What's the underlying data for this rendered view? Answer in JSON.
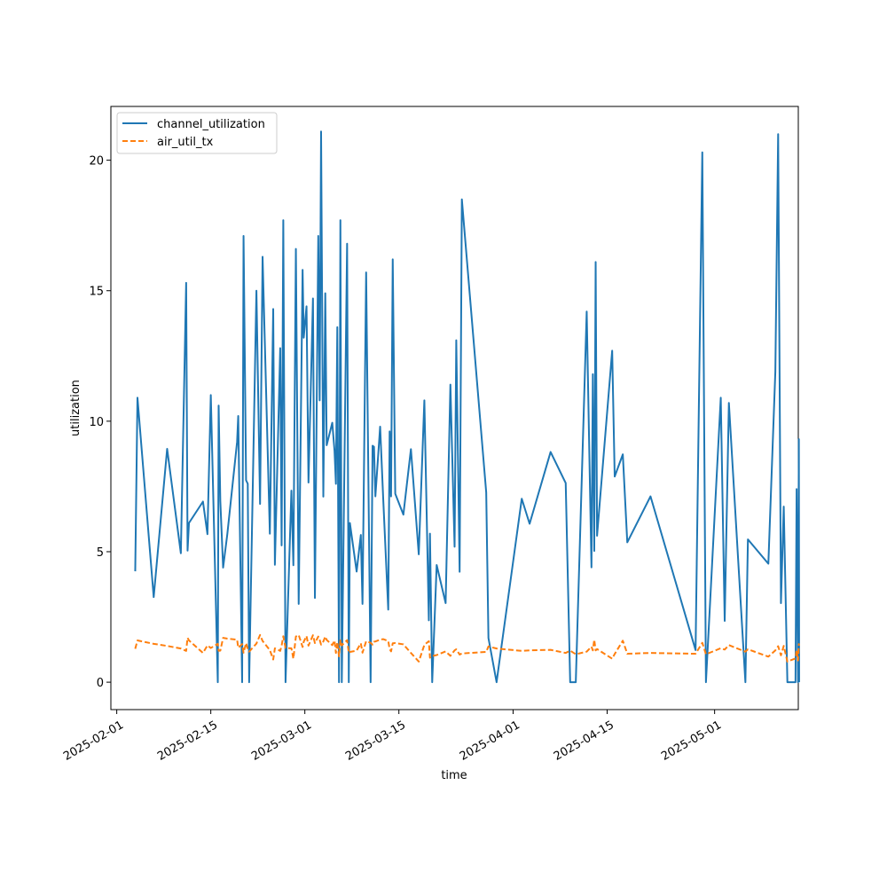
{
  "chart_data": {
    "type": "line",
    "xlabel": "time",
    "ylabel": "utilization",
    "xlim": [
      "2025-01-31T03:00",
      "2025-05-13T11:00"
    ],
    "ylim": [
      -1.05,
      22.06
    ],
    "yticks": [
      0,
      5,
      10,
      15,
      20
    ],
    "xticks": [
      "2025-02-01",
      "2025-02-15",
      "2025-03-01",
      "2025-03-15",
      "2025-04-01",
      "2025-04-15",
      "2025-05-01"
    ],
    "grid": false,
    "legend_position": "upper-left",
    "colors": {
      "channel_utilization": "#1f77b4",
      "air_util_tx": "#ff7f0e"
    },
    "series": [
      {
        "name": "channel_utilization",
        "line_style": "solid",
        "points": [
          [
            "2025-02-03T18:00",
            4.25
          ],
          [
            "2025-02-04T02:00",
            10.9
          ],
          [
            "2025-02-06T12:00",
            3.26
          ],
          [
            "2025-02-08T12:00",
            8.94
          ],
          [
            "2025-02-10T13:00",
            4.94
          ],
          [
            "2025-02-11T08:00",
            15.3
          ],
          [
            "2025-02-11T13:00",
            5.04
          ],
          [
            "2025-02-11T18:00",
            6.1
          ],
          [
            "2025-02-13T20:00",
            6.92
          ],
          [
            "2025-02-14T12:00",
            5.67
          ],
          [
            "2025-02-15T00:00",
            11.0
          ],
          [
            "2025-02-16T01:00",
            0.0
          ],
          [
            "2025-02-16T04:00",
            10.6
          ],
          [
            "2025-02-16T10:00",
            6.94
          ],
          [
            "2025-02-16T20:00",
            4.39
          ],
          [
            "2025-02-17T11:00",
            5.67
          ],
          [
            "2025-02-18T22:00",
            9.21
          ],
          [
            "2025-02-19T02:00",
            10.2
          ],
          [
            "2025-02-19T16:00",
            0.0
          ],
          [
            "2025-02-19T21:00",
            17.1
          ],
          [
            "2025-02-20T06:00",
            7.74
          ],
          [
            "2025-02-20T12:00",
            7.6
          ],
          [
            "2025-02-20T17:00",
            0.0
          ],
          [
            "2025-02-21T19:00",
            15.0
          ],
          [
            "2025-02-22T08:00",
            6.83
          ],
          [
            "2025-02-22T17:00",
            16.3
          ],
          [
            "2025-02-23T19:00",
            5.69
          ],
          [
            "2025-02-24T07:00",
            14.3
          ],
          [
            "2025-02-24T13:00",
            4.5
          ],
          [
            "2025-02-25T08:00",
            12.8
          ],
          [
            "2025-02-25T13:00",
            5.24
          ],
          [
            "2025-02-25T19:00",
            17.7
          ],
          [
            "2025-02-26T03:00",
            0.0
          ],
          [
            "2025-02-27T00:00",
            7.34
          ],
          [
            "2025-02-27T07:00",
            4.48
          ],
          [
            "2025-02-27T16:00",
            16.6
          ],
          [
            "2025-02-28T02:00",
            3.0
          ],
          [
            "2025-02-28T16:00",
            15.8
          ],
          [
            "2025-02-28T20:00",
            13.2
          ],
          [
            "2025-03-01T06:00",
            14.4
          ],
          [
            "2025-03-01T13:00",
            7.65
          ],
          [
            "2025-03-02T05:00",
            14.7
          ],
          [
            "2025-03-02T12:00",
            3.23
          ],
          [
            "2025-03-03T00:00",
            17.1
          ],
          [
            "2025-03-03T05:00",
            10.8
          ],
          [
            "2025-03-03T10:00",
            21.1
          ],
          [
            "2025-03-03T18:00",
            7.11
          ],
          [
            "2025-03-04T01:00",
            14.9
          ],
          [
            "2025-03-04T06:00",
            9.08
          ],
          [
            "2025-03-05T02:00",
            9.94
          ],
          [
            "2025-03-05T10:00",
            8.87
          ],
          [
            "2025-03-05T15:00",
            7.6
          ],
          [
            "2025-03-05T20:00",
            13.6
          ],
          [
            "2025-03-06T02:00",
            0.0
          ],
          [
            "2025-03-06T07:00",
            17.7
          ],
          [
            "2025-03-06T12:00",
            0.0
          ],
          [
            "2025-03-07T07:00",
            16.8
          ],
          [
            "2025-03-07T13:00",
            0.0
          ],
          [
            "2025-03-07T17:00",
            6.1
          ],
          [
            "2025-03-08T17:00",
            4.24
          ],
          [
            "2025-03-09T08:00",
            5.64
          ],
          [
            "2025-03-09T14:00",
            3.0
          ],
          [
            "2025-03-10T03:00",
            15.7
          ],
          [
            "2025-03-10T19:00",
            0.0
          ],
          [
            "2025-03-11T02:00",
            9.06
          ],
          [
            "2025-03-11T07:00",
            9.02
          ],
          [
            "2025-03-11T12:00",
            7.12
          ],
          [
            "2025-03-12T05:00",
            9.79
          ],
          [
            "2025-03-12T16:00",
            7.03
          ],
          [
            "2025-03-13T10:00",
            2.78
          ],
          [
            "2025-03-13T15:00",
            9.61
          ],
          [
            "2025-03-13T20:00",
            7.12
          ],
          [
            "2025-03-14T02:00",
            16.2
          ],
          [
            "2025-03-14T11:00",
            7.22
          ],
          [
            "2025-03-15T16:00",
            6.42
          ],
          [
            "2025-03-16T19:00",
            8.93
          ],
          [
            "2025-03-17T23:00",
            4.9
          ],
          [
            "2025-03-18T19:00",
            10.8
          ],
          [
            "2025-03-19T11:00",
            2.37
          ],
          [
            "2025-03-19T15:00",
            5.69
          ],
          [
            "2025-03-19T23:00",
            0.0
          ],
          [
            "2025-03-20T15:00",
            4.49
          ],
          [
            "2025-03-21T23:00",
            3.03
          ],
          [
            "2025-03-22T16:00",
            11.4
          ],
          [
            "2025-03-23T07:00",
            5.19
          ],
          [
            "2025-03-23T13:00",
            13.1
          ],
          [
            "2025-03-24T01:00",
            4.23
          ],
          [
            "2025-03-24T09:00",
            18.5
          ],
          [
            "2025-03-28T00:00",
            7.27
          ],
          [
            "2025-03-28T08:00",
            1.69
          ],
          [
            "2025-03-29T13:00",
            0.0
          ],
          [
            "2025-04-02T07:00",
            7.03
          ],
          [
            "2025-04-03T11:00",
            6.07
          ],
          [
            "2025-04-06T14:00",
            8.82
          ],
          [
            "2025-04-08T20:00",
            7.63
          ],
          [
            "2025-04-09T12:00",
            0.0
          ],
          [
            "2025-04-10T08:00",
            0.0
          ],
          [
            "2025-04-11T23:00",
            14.2
          ],
          [
            "2025-04-12T16:00",
            4.4
          ],
          [
            "2025-04-12T21:00",
            11.8
          ],
          [
            "2025-04-13T02:00",
            5.03
          ],
          [
            "2025-04-13T07:00",
            16.1
          ],
          [
            "2025-04-13T12:00",
            5.61
          ],
          [
            "2025-04-15T18:00",
            12.7
          ],
          [
            "2025-04-16T03:00",
            7.88
          ],
          [
            "2025-04-17T08:00",
            8.73
          ],
          [
            "2025-04-18T00:00",
            5.36
          ],
          [
            "2025-04-21T11:00",
            7.12
          ],
          [
            "2025-04-28T04:00",
            1.23
          ],
          [
            "2025-04-29T04:00",
            20.3
          ],
          [
            "2025-04-29T17:00",
            0.0
          ],
          [
            "2025-05-01T22:00",
            10.9
          ],
          [
            "2025-05-02T12:00",
            2.35
          ],
          [
            "2025-05-03T03:00",
            10.7
          ],
          [
            "2025-05-05T14:00",
            0.0
          ],
          [
            "2025-05-05T23:00",
            5.47
          ],
          [
            "2025-05-09T00:00",
            4.54
          ],
          [
            "2025-05-10T01:00",
            11.9
          ],
          [
            "2025-05-10T11:00",
            21.0
          ],
          [
            "2025-05-10T21:00",
            3.03
          ],
          [
            "2025-05-11T07:00",
            6.73
          ],
          [
            "2025-05-11T20:00",
            0.0
          ],
          [
            "2025-05-13T01:00",
            0.0
          ],
          [
            "2025-05-13T05:00",
            7.4
          ],
          [
            "2025-05-13T10:00",
            0.0
          ],
          [
            "2025-05-13T13:00",
            9.31
          ],
          [
            "2025-05-13T14:00",
            0.0
          ]
        ]
      },
      {
        "name": "air_util_tx",
        "line_style": "dashed",
        "points": [
          [
            "2025-02-03T18:00",
            1.28
          ],
          [
            "2025-02-04T02:00",
            1.6
          ],
          [
            "2025-02-06T12:00",
            1.47
          ],
          [
            "2025-02-08T12:00",
            1.39
          ],
          [
            "2025-02-10T13:00",
            1.29
          ],
          [
            "2025-02-11T08:00",
            1.2
          ],
          [
            "2025-02-11T13:00",
            1.7
          ],
          [
            "2025-02-11T18:00",
            1.6
          ],
          [
            "2025-02-13T20:00",
            1.12
          ],
          [
            "2025-02-14T12:00",
            1.41
          ],
          [
            "2025-02-15T00:00",
            1.31
          ],
          [
            "2025-02-16T01:00",
            1.47
          ],
          [
            "2025-02-16T04:00",
            1.2
          ],
          [
            "2025-02-16T10:00",
            1.21
          ],
          [
            "2025-02-16T20:00",
            1.7
          ],
          [
            "2025-02-17T11:00",
            1.67
          ],
          [
            "2025-02-18T22:00",
            1.63
          ],
          [
            "2025-02-19T02:00",
            1.32
          ],
          [
            "2025-02-19T16:00",
            1.46
          ],
          [
            "2025-02-19T21:00",
            1.13
          ],
          [
            "2025-02-20T06:00",
            1.5
          ],
          [
            "2025-02-20T12:00",
            1.27
          ],
          [
            "2025-02-20T17:00",
            1.17
          ],
          [
            "2025-02-21T19:00",
            1.48
          ],
          [
            "2025-02-22T08:00",
            1.81
          ],
          [
            "2025-02-22T17:00",
            1.58
          ],
          [
            "2025-02-23T19:00",
            1.23
          ],
          [
            "2025-02-24T07:00",
            0.87
          ],
          [
            "2025-02-24T13:00",
            1.3
          ],
          [
            "2025-02-25T08:00",
            1.2
          ],
          [
            "2025-02-25T13:00",
            1.4
          ],
          [
            "2025-02-25T19:00",
            1.76
          ],
          [
            "2025-02-26T03:00",
            1.31
          ],
          [
            "2025-02-27T00:00",
            1.3
          ],
          [
            "2025-02-27T07:00",
            0.9
          ],
          [
            "2025-02-27T16:00",
            1.75
          ],
          [
            "2025-02-28T02:00",
            1.81
          ],
          [
            "2025-02-28T16:00",
            1.35
          ],
          [
            "2025-02-28T20:00",
            1.55
          ],
          [
            "2025-03-01T06:00",
            1.77
          ],
          [
            "2025-03-01T13:00",
            1.4
          ],
          [
            "2025-03-02T05:00",
            1.8
          ],
          [
            "2025-03-02T12:00",
            1.5
          ],
          [
            "2025-03-03T00:00",
            1.75
          ],
          [
            "2025-03-03T05:00",
            1.62
          ],
          [
            "2025-03-03T10:00",
            1.44
          ],
          [
            "2025-03-03T18:00",
            1.56
          ],
          [
            "2025-03-04T01:00",
            1.75
          ],
          [
            "2025-03-04T06:00",
            1.62
          ],
          [
            "2025-03-05T02:00",
            1.42
          ],
          [
            "2025-03-05T10:00",
            1.6
          ],
          [
            "2025-03-05T15:00",
            1.12
          ],
          [
            "2025-03-05T20:00",
            1.54
          ],
          [
            "2025-03-06T02:00",
            0.99
          ],
          [
            "2025-03-06T07:00",
            1.61
          ],
          [
            "2025-03-06T12:00",
            1.41
          ],
          [
            "2025-03-07T07:00",
            1.61
          ],
          [
            "2025-03-07T13:00",
            1.12
          ],
          [
            "2025-03-07T17:00",
            1.16
          ],
          [
            "2025-03-08T17:00",
            1.21
          ],
          [
            "2025-03-09T08:00",
            1.49
          ],
          [
            "2025-03-09T14:00",
            1.13
          ],
          [
            "2025-03-10T03:00",
            1.57
          ],
          [
            "2025-03-10T19:00",
            1.51
          ],
          [
            "2025-03-11T02:00",
            1.44
          ],
          [
            "2025-03-11T07:00",
            1.55
          ],
          [
            "2025-03-11T12:00",
            1.56
          ],
          [
            "2025-03-12T05:00",
            1.63
          ],
          [
            "2025-03-12T16:00",
            1.65
          ],
          [
            "2025-03-13T10:00",
            1.58
          ],
          [
            "2025-03-13T15:00",
            1.27
          ],
          [
            "2025-03-13T20:00",
            1.18
          ],
          [
            "2025-03-14T02:00",
            1.49
          ],
          [
            "2025-03-14T11:00",
            1.5
          ],
          [
            "2025-03-15T16:00",
            1.45
          ],
          [
            "2025-03-16T19:00",
            1.12
          ],
          [
            "2025-03-17T23:00",
            0.79
          ],
          [
            "2025-03-18T19:00",
            1.43
          ],
          [
            "2025-03-19T11:00",
            1.57
          ],
          [
            "2025-03-19T15:00",
            0.94
          ],
          [
            "2025-03-19T23:00",
            1.0
          ],
          [
            "2025-03-20T15:00",
            1.04
          ],
          [
            "2025-03-21T23:00",
            1.18
          ],
          [
            "2025-03-22T16:00",
            1.01
          ],
          [
            "2025-03-23T07:00",
            1.22
          ],
          [
            "2025-03-23T13:00",
            1.26
          ],
          [
            "2025-03-24T01:00",
            1.06
          ],
          [
            "2025-03-24T09:00",
            1.1
          ],
          [
            "2025-03-28T00:00",
            1.16
          ],
          [
            "2025-03-28T08:00",
            1.37
          ],
          [
            "2025-03-29T13:00",
            1.29
          ],
          [
            "2025-04-02T07:00",
            1.2
          ],
          [
            "2025-04-03T11:00",
            1.22
          ],
          [
            "2025-04-06T14:00",
            1.24
          ],
          [
            "2025-04-08T20:00",
            1.12
          ],
          [
            "2025-04-09T12:00",
            1.21
          ],
          [
            "2025-04-10T08:00",
            1.07
          ],
          [
            "2025-04-11T23:00",
            1.17
          ],
          [
            "2025-04-12T16:00",
            1.36
          ],
          [
            "2025-04-12T21:00",
            1.22
          ],
          [
            "2025-04-13T02:00",
            1.63
          ],
          [
            "2025-04-13T07:00",
            1.22
          ],
          [
            "2025-04-13T12:00",
            1.27
          ],
          [
            "2025-04-15T18:00",
            0.9
          ],
          [
            "2025-04-16T03:00",
            1.08
          ],
          [
            "2025-04-17T08:00",
            1.59
          ],
          [
            "2025-04-18T00:00",
            1.09
          ],
          [
            "2025-04-21T11:00",
            1.12
          ],
          [
            "2025-04-28T04:00",
            1.09
          ],
          [
            "2025-04-29T04:00",
            1.51
          ],
          [
            "2025-04-29T17:00",
            1.07
          ],
          [
            "2025-05-01T22:00",
            1.3
          ],
          [
            "2025-05-02T12:00",
            1.25
          ],
          [
            "2025-05-03T03:00",
            1.42
          ],
          [
            "2025-05-05T14:00",
            1.17
          ],
          [
            "2025-05-05T23:00",
            1.26
          ],
          [
            "2025-05-09T00:00",
            0.98
          ],
          [
            "2025-05-10T01:00",
            1.22
          ],
          [
            "2025-05-10T11:00",
            1.38
          ],
          [
            "2025-05-10T21:00",
            1.03
          ],
          [
            "2025-05-11T07:00",
            1.39
          ],
          [
            "2025-05-11T20:00",
            0.79
          ],
          [
            "2025-05-13T01:00",
            0.91
          ],
          [
            "2025-05-13T05:00",
            1.24
          ],
          [
            "2025-05-13T10:00",
            0.83
          ],
          [
            "2025-05-13T13:00",
            1.46
          ],
          [
            "2025-05-13T14:00",
            1.41
          ]
        ]
      }
    ]
  }
}
